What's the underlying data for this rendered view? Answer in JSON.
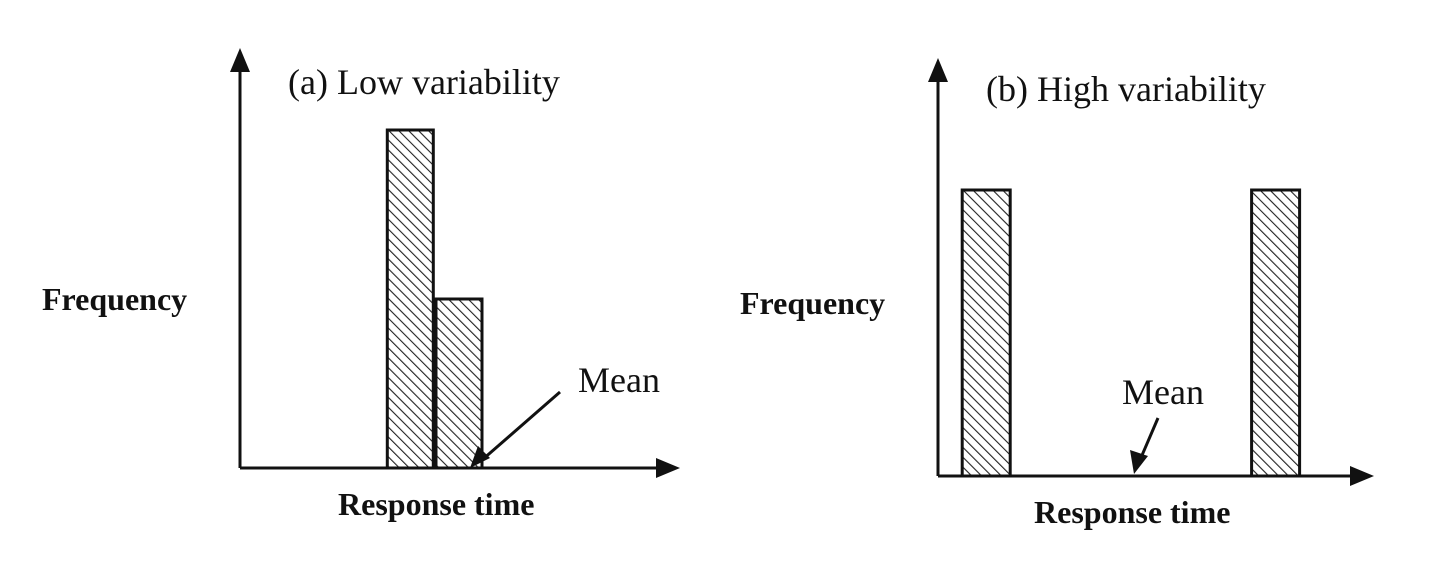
{
  "chart_data": [
    {
      "type": "bar",
      "title": "(a) Low variability",
      "xlabel": "Response time",
      "ylabel": "Frequency",
      "x_ticks_shown": false,
      "y_ticks_shown": false,
      "grid": false,
      "legend": "none",
      "bar_fill": "hatched",
      "bars": [
        {
          "x": 3.5,
          "y": 1.0
        },
        {
          "x": 4.5,
          "y": 0.5
        }
      ],
      "annotations": [
        {
          "text": "Mean",
          "x": 5.0,
          "y": 0.0
        }
      ],
      "xlim": [
        0,
        9.0
      ],
      "ylim": [
        0,
        1.0
      ]
    },
    {
      "type": "bar",
      "title": "(b) High variability",
      "xlabel": "Response time",
      "ylabel": "Frequency",
      "x_ticks_shown": false,
      "y_ticks_shown": false,
      "grid": false,
      "legend": "none",
      "bar_fill": "hatched",
      "bars": [
        {
          "x": 1.0,
          "y": 1.0
        },
        {
          "x": 7.0,
          "y": 1.0
        }
      ],
      "annotations": [
        {
          "text": "Mean",
          "x": 4.0,
          "y": 0.0
        }
      ],
      "xlim": [
        0,
        9.0
      ],
      "ylim": [
        0,
        1.0
      ]
    }
  ],
  "colors": {
    "ink": "#111111",
    "hatch": "#222222",
    "bar_bg": "#ffffff",
    "page_bg": "#ffffff"
  }
}
